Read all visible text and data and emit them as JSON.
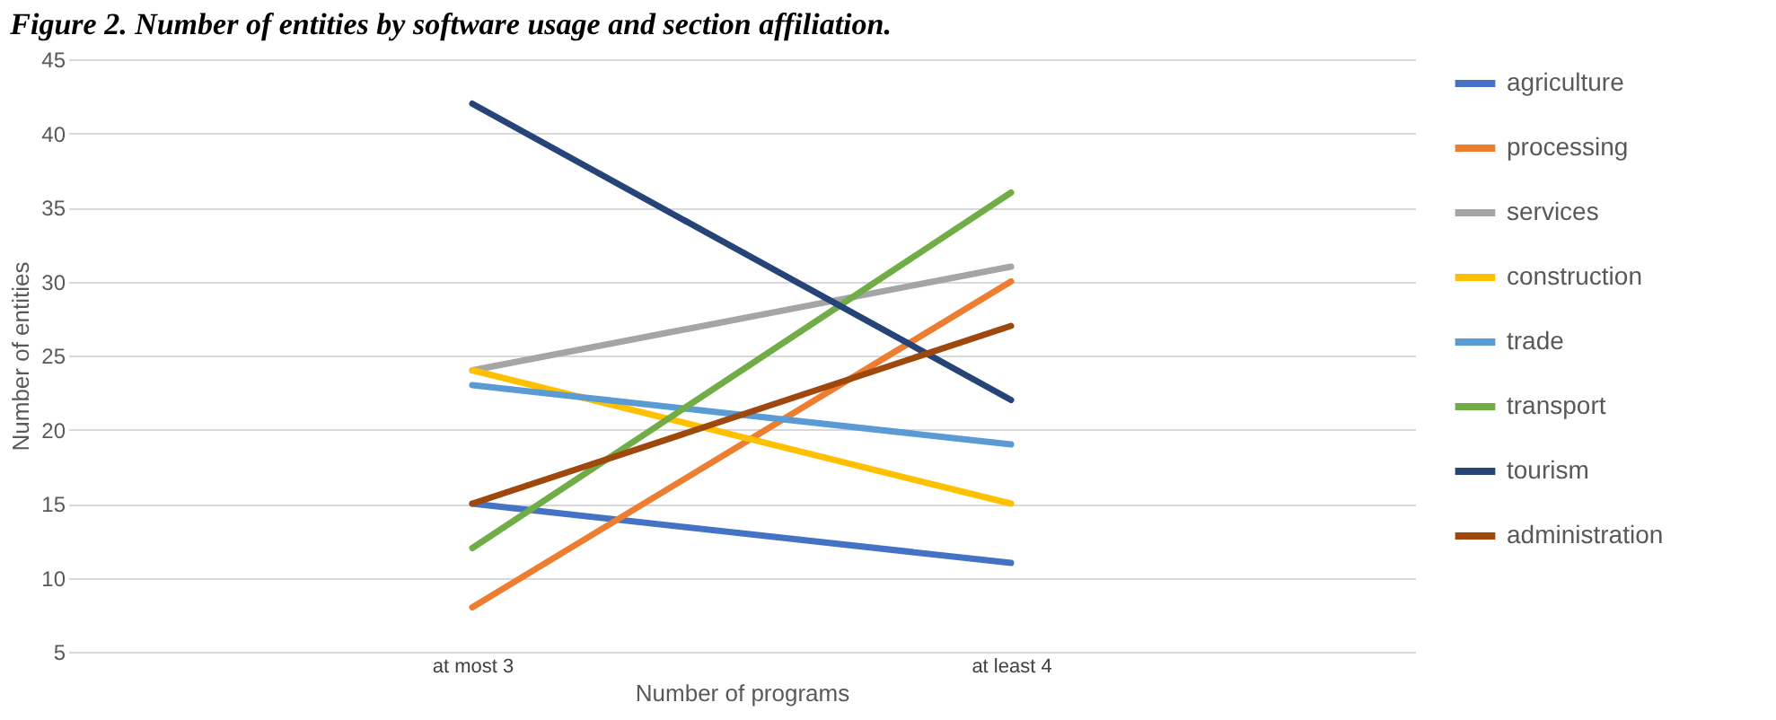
{
  "chart_data": {
    "type": "line",
    "title": "Figure 2. Number of entities by software usage and section affiliation.",
    "xlabel": "Number of programs",
    "ylabel": "Number of entities",
    "categories": [
      "at most 3",
      "at least 4"
    ],
    "series": [
      {
        "name": "agriculture",
        "color": "#4472c4",
        "values": [
          15,
          11
        ]
      },
      {
        "name": "processing",
        "color": "#ed7d31",
        "values": [
          8,
          30
        ]
      },
      {
        "name": "services",
        "color": "#a5a5a5",
        "values": [
          24,
          31
        ]
      },
      {
        "name": "construction",
        "color": "#ffc000",
        "values": [
          24,
          15
        ]
      },
      {
        "name": "trade",
        "color": "#5b9bd5",
        "values": [
          23,
          19
        ]
      },
      {
        "name": "transport",
        "color": "#70ad47",
        "values": [
          12,
          36
        ]
      },
      {
        "name": "tourism",
        "color": "#264478",
        "values": [
          42,
          22
        ]
      },
      {
        "name": "administration",
        "color": "#9e480e",
        "values": [
          15,
          27
        ]
      }
    ],
    "ylim": [
      5,
      45
    ],
    "yticks": [
      5,
      10,
      15,
      20,
      25,
      30,
      35,
      40,
      45
    ],
    "grid": "y",
    "legend": "right"
  }
}
